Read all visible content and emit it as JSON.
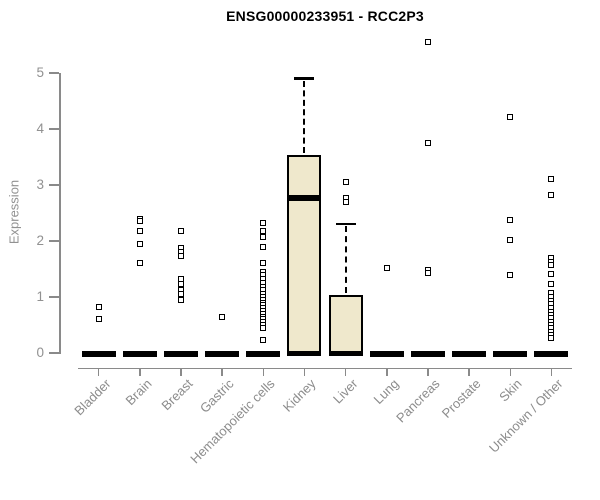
{
  "title": "ENSG00000233951 - RCC2P3",
  "chart_data": {
    "type": "boxplot",
    "title": "ENSG00000233951 - RCC2P3",
    "xlabel": "",
    "ylabel": "Expression",
    "ylim": [
      0,
      5
    ],
    "yticks": [
      0,
      1,
      2,
      3,
      4,
      5
    ],
    "grid": false,
    "legend": "none",
    "categories": [
      "Bladder",
      "Brain",
      "Breast",
      "Gastric",
      "Hematopoietic cells",
      "Kidney",
      "Liver",
      "Lung",
      "Pancreas",
      "Prostate",
      "Skin",
      "Unknown / Other"
    ],
    "boxes": [
      {
        "category": "Bladder",
        "q1": 0,
        "median": 0,
        "q3": 0,
        "whisker_low": 0,
        "whisker_high": 0,
        "outliers": [
          0.83,
          0.6
        ]
      },
      {
        "category": "Brain",
        "q1": 0,
        "median": 0,
        "q3": 0,
        "whisker_low": 0,
        "whisker_high": 0,
        "outliers": [
          2.4,
          2.36,
          2.18,
          1.95,
          1.6
        ]
      },
      {
        "category": "Breast",
        "q1": 0,
        "median": 0,
        "q3": 0,
        "whisker_low": 0,
        "whisker_high": 0,
        "outliers": [
          2.18,
          1.87,
          1.8,
          1.73,
          1.32,
          1.23,
          1.13,
          1.05,
          0.95
        ]
      },
      {
        "category": "Gastric",
        "q1": 0,
        "median": 0,
        "q3": 0,
        "whisker_low": 0,
        "whisker_high": 0,
        "outliers": [
          0.64
        ]
      },
      {
        "category": "Hematopoietic cells",
        "q1": 0,
        "median": 0,
        "q3": 0,
        "whisker_low": 0,
        "whisker_high": 0,
        "outliers": [
          2.32,
          2.17,
          2.08,
          1.9,
          1.6,
          1.45,
          1.4,
          1.33,
          1.25,
          1.18,
          1.12,
          1.06,
          1.0,
          0.95,
          0.9,
          0.85,
          0.8,
          0.75,
          0.7,
          0.65,
          0.6,
          0.55,
          0.5,
          0.44,
          0.23
        ]
      },
      {
        "category": "Kidney",
        "q1": 0,
        "median": 2.77,
        "q3": 3.54,
        "whisker_low": 0,
        "whisker_high": 4.9,
        "outliers": []
      },
      {
        "category": "Liver",
        "q1": 0,
        "median": 0,
        "q3": 1.04,
        "whisker_low": 0,
        "whisker_high": 2.3,
        "outliers": [
          3.05,
          2.77,
          2.7
        ]
      },
      {
        "category": "Lung",
        "q1": 0,
        "median": 0,
        "q3": 0,
        "whisker_low": 0,
        "whisker_high": 0,
        "outliers": [
          1.52
        ]
      },
      {
        "category": "Pancreas",
        "q1": 0,
        "median": 0,
        "q3": 0,
        "whisker_low": 0,
        "whisker_high": 0,
        "outliers": [
          5.55,
          3.75,
          1.48,
          1.43
        ]
      },
      {
        "category": "Prostate",
        "q1": 0,
        "median": 0,
        "q3": 0,
        "whisker_low": 0,
        "whisker_high": 0,
        "outliers": []
      },
      {
        "category": "Skin",
        "q1": 0,
        "median": 0,
        "q3": 0,
        "whisker_low": 0,
        "whisker_high": 0,
        "outliers": [
          4.21,
          2.38,
          2.02,
          1.39
        ]
      },
      {
        "category": "Unknown / Other",
        "q1": 0,
        "median": 0,
        "q3": 0,
        "whisker_low": 0,
        "whisker_high": 0,
        "outliers": [
          3.1,
          2.82,
          1.7,
          1.63,
          1.57,
          1.41,
          1.24,
          1.08,
          1.0,
          0.93,
          0.88,
          0.8,
          0.74,
          0.68,
          0.62,
          0.56,
          0.5,
          0.44,
          0.38,
          0.32,
          0.26
        ]
      }
    ],
    "colors": {
      "box_fill": "#EFE8CC",
      "box_border": "#000000",
      "axis": "#8A8A8A",
      "tick_label": "#919191",
      "title": "#000000"
    }
  }
}
